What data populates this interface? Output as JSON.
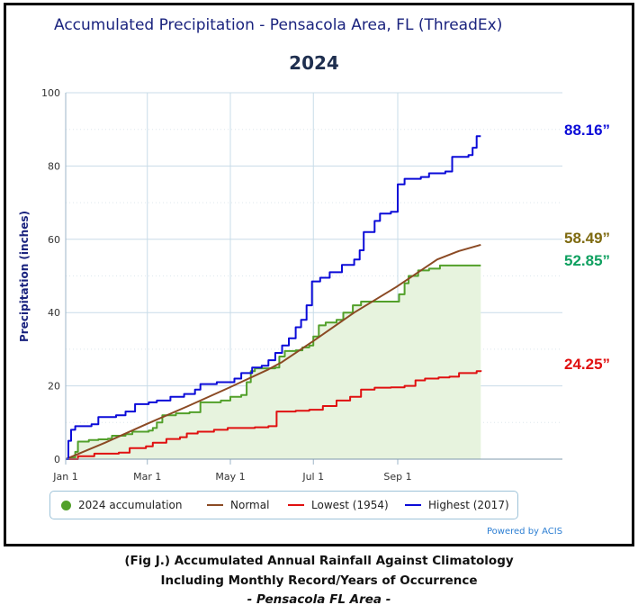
{
  "colors": {
    "accumulation": "#52a02a",
    "accumulation_fill": "#e7f3de",
    "normal": "#8b4a24",
    "lowest": "#e01010",
    "highest": "#0b0bd8",
    "normal_label": "#7e6a10",
    "accumulation_label": "#0fa060",
    "title": "#1a237e",
    "grid": "#c8dce8"
  },
  "chart_data": {
    "type": "line",
    "title": "Accumulated Precipitation - Pensacola Area, FL (ThreadEx)",
    "subtitle": "2024",
    "ylabel": "Precipitation (inches)",
    "xlabel": "",
    "ylim": [
      0,
      100
    ],
    "yticks": [
      0,
      20,
      40,
      60,
      80,
      100
    ],
    "xlim_days": [
      1,
      366
    ],
    "xticks": [
      {
        "label": "Jan 1",
        "day": 1
      },
      {
        "label": "Mar 1",
        "day": 61
      },
      {
        "label": "May 1",
        "day": 122
      },
      {
        "label": "Jul 1",
        "day": 183
      },
      {
        "label": "Sep 1",
        "day": 245
      }
    ],
    "grid": true,
    "legend_position": "bottom",
    "credit": "Powered by ACIS",
    "series": [
      {
        "name": "2024 accumulation",
        "key": "accumulation",
        "style": "step-area",
        "end_label": "52.85”",
        "points": [
          [
            1,
            0
          ],
          [
            5,
            0.4
          ],
          [
            8,
            2
          ],
          [
            10,
            4.8
          ],
          [
            18,
            5.2
          ],
          [
            25,
            5.4
          ],
          [
            32,
            5.6
          ],
          [
            35,
            6.4
          ],
          [
            45,
            6.8
          ],
          [
            50,
            7.5
          ],
          [
            62,
            7.8
          ],
          [
            65,
            8.5
          ],
          [
            68,
            10
          ],
          [
            72,
            12
          ],
          [
            82,
            12.5
          ],
          [
            92,
            12.8
          ],
          [
            100,
            15.5
          ],
          [
            115,
            16
          ],
          [
            122,
            17
          ],
          [
            130,
            17.5
          ],
          [
            134,
            21
          ],
          [
            137,
            24
          ],
          [
            140,
            24.8
          ],
          [
            155,
            25
          ],
          [
            158,
            28
          ],
          [
            162,
            29.5
          ],
          [
            170,
            29.7
          ],
          [
            175,
            30.5
          ],
          [
            180,
            31
          ],
          [
            183,
            33.5
          ],
          [
            187,
            36.5
          ],
          [
            192,
            37.3
          ],
          [
            200,
            38
          ],
          [
            205,
            40
          ],
          [
            212,
            42
          ],
          [
            218,
            43
          ],
          [
            230,
            43
          ],
          [
            240,
            43
          ],
          [
            246,
            45
          ],
          [
            250,
            48
          ],
          [
            253,
            50
          ],
          [
            260,
            51.5
          ],
          [
            268,
            52
          ],
          [
            276,
            52.85
          ],
          [
            300,
            52.85
          ],
          [
            306,
            52.85
          ]
        ]
      },
      {
        "name": "Normal",
        "key": "normal",
        "style": "line",
        "end_label": "58.49”",
        "points": [
          [
            1,
            0
          ],
          [
            30,
            4.5
          ],
          [
            60,
            9.5
          ],
          [
            91,
            14.5
          ],
          [
            121,
            19.5
          ],
          [
            150,
            24.5
          ],
          [
            160,
            26.5
          ],
          [
            182,
            32
          ],
          [
            213,
            40
          ],
          [
            244,
            47
          ],
          [
            260,
            51
          ],
          [
            274,
            54.5
          ],
          [
            290,
            56.8
          ],
          [
            306,
            58.49
          ]
        ]
      },
      {
        "name": "Lowest (1954)",
        "key": "lowest",
        "style": "step",
        "end_label": "24.25”",
        "points": [
          [
            1,
            0
          ],
          [
            10,
            0.8
          ],
          [
            22,
            1.5
          ],
          [
            40,
            1.8
          ],
          [
            48,
            3
          ],
          [
            60,
            3.5
          ],
          [
            65,
            4.5
          ],
          [
            75,
            5.5
          ],
          [
            85,
            6
          ],
          [
            90,
            7
          ],
          [
            98,
            7.5
          ],
          [
            110,
            8
          ],
          [
            120,
            8.5
          ],
          [
            140,
            8.7
          ],
          [
            150,
            9
          ],
          [
            156,
            13
          ],
          [
            170,
            13.2
          ],
          [
            180,
            13.5
          ],
          [
            190,
            14.5
          ],
          [
            200,
            16
          ],
          [
            210,
            17
          ],
          [
            218,
            19
          ],
          [
            228,
            19.5
          ],
          [
            240,
            19.6
          ],
          [
            250,
            20
          ],
          [
            258,
            21.5
          ],
          [
            265,
            22
          ],
          [
            275,
            22.3
          ],
          [
            283,
            22.5
          ],
          [
            290,
            23.5
          ],
          [
            303,
            24
          ],
          [
            306,
            24.25
          ]
        ]
      },
      {
        "name": "Highest (2017)",
        "key": "highest",
        "style": "step",
        "end_label": "88.16”",
        "points": [
          [
            1,
            0
          ],
          [
            3,
            5
          ],
          [
            5,
            8
          ],
          [
            8,
            9
          ],
          [
            20,
            9.5
          ],
          [
            25,
            11.5
          ],
          [
            38,
            12
          ],
          [
            45,
            13
          ],
          [
            52,
            15
          ],
          [
            62,
            15.5
          ],
          [
            68,
            16
          ],
          [
            78,
            17
          ],
          [
            88,
            17.8
          ],
          [
            96,
            19
          ],
          [
            100,
            20.5
          ],
          [
            112,
            21
          ],
          [
            125,
            22
          ],
          [
            130,
            23.5
          ],
          [
            138,
            25
          ],
          [
            145,
            25.5
          ],
          [
            150,
            27
          ],
          [
            155,
            29
          ],
          [
            160,
            31
          ],
          [
            165,
            33
          ],
          [
            170,
            36
          ],
          [
            174,
            38
          ],
          [
            178,
            42
          ],
          [
            182,
            48.5
          ],
          [
            188,
            49.5
          ],
          [
            195,
            51
          ],
          [
            204,
            53
          ],
          [
            213,
            54.5
          ],
          [
            217,
            57
          ],
          [
            220,
            62
          ],
          [
            228,
            65
          ],
          [
            232,
            67
          ],
          [
            240,
            67.5
          ],
          [
            245,
            75
          ],
          [
            250,
            76.5
          ],
          [
            262,
            77
          ],
          [
            268,
            78
          ],
          [
            280,
            78.5
          ],
          [
            285,
            82.5
          ],
          [
            297,
            83
          ],
          [
            300,
            85
          ],
          [
            303,
            88.16
          ],
          [
            306,
            88.16
          ]
        ]
      }
    ]
  },
  "legend": {
    "items": [
      {
        "label": "2024 accumulation"
      },
      {
        "label": "Normal"
      },
      {
        "label": "Lowest (1954)"
      },
      {
        "label": "Highest (2017)"
      }
    ]
  },
  "caption": {
    "line1": "(Fig J.) Accumulated Annual Rainfall Against  Climatology",
    "line2": "Including Monthly Record/Years of Occurrence",
    "line3": "- Pensacola FL Area -"
  }
}
